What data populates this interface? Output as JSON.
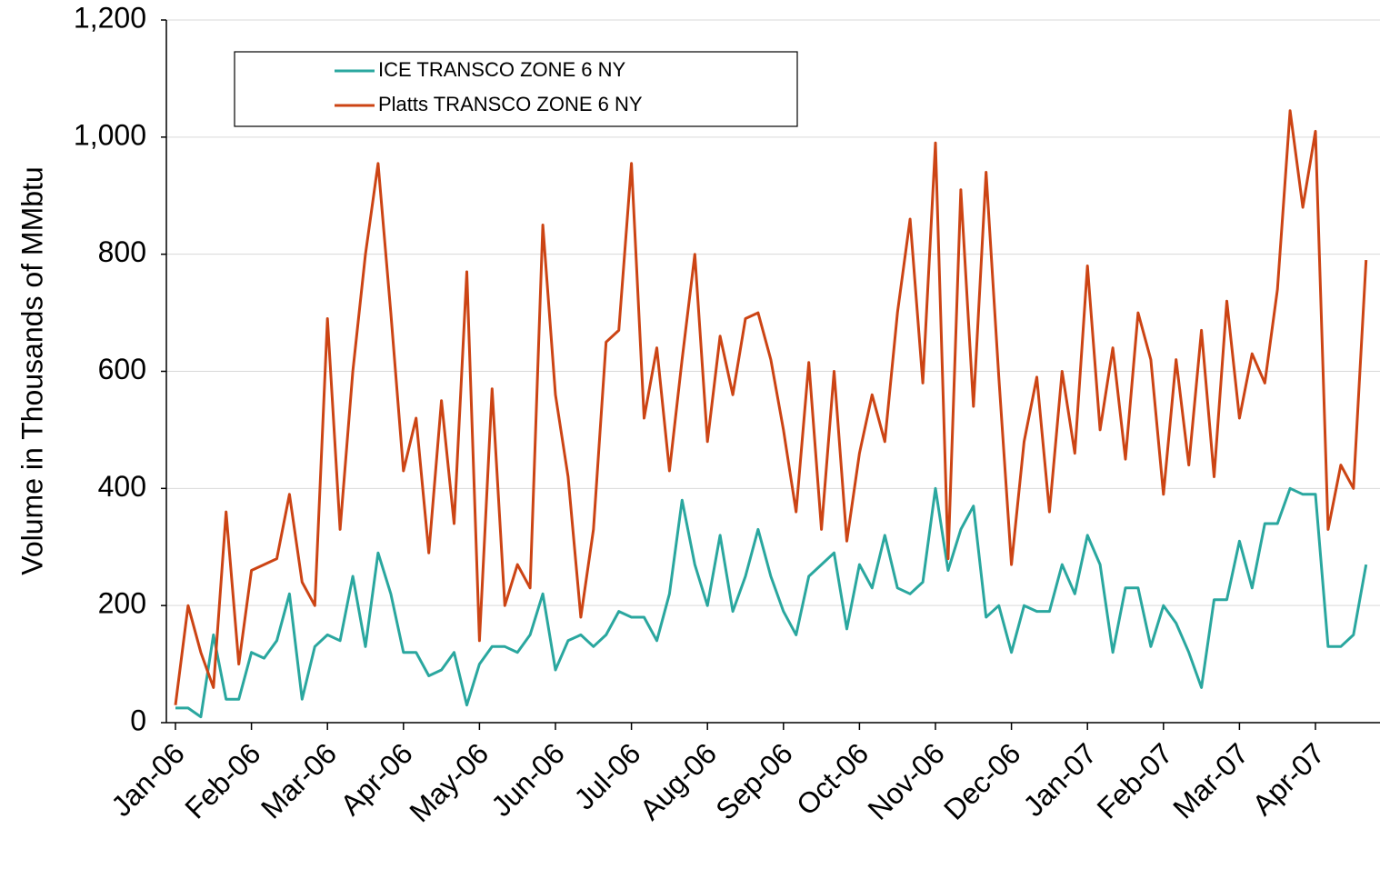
{
  "chart_data": {
    "type": "line",
    "y_label": "Volume in Thousands of MMbtu",
    "categories": [
      "Jan-06",
      null,
      null,
      null,
      null,
      null,
      "Feb-06",
      null,
      null,
      null,
      null,
      null,
      "Mar-06",
      null,
      null,
      null,
      null,
      null,
      "Apr-06",
      null,
      null,
      null,
      null,
      null,
      "May-06",
      null,
      null,
      null,
      null,
      null,
      "Jun-06",
      null,
      null,
      null,
      null,
      null,
      "Jul-06",
      null,
      null,
      null,
      null,
      null,
      "Aug-06",
      null,
      null,
      null,
      null,
      null,
      "Sep-06",
      null,
      null,
      null,
      null,
      null,
      "Oct-06",
      null,
      null,
      null,
      null,
      null,
      "Nov-06",
      null,
      null,
      null,
      null,
      null,
      "Dec-06",
      null,
      null,
      null,
      null,
      null,
      "Jan-07",
      null,
      null,
      null,
      null,
      null,
      "Feb-07",
      null,
      null,
      null,
      null,
      null,
      "Mar-07",
      null,
      null,
      null,
      null,
      null,
      "Apr-07",
      null,
      null,
      null,
      null
    ],
    "series": [
      {
        "name": "ICE TRANSCO ZONE 6 NY",
        "color": "#2aa79f",
        "values": [
          25,
          25,
          10,
          150,
          40,
          40,
          120,
          110,
          140,
          220,
          40,
          130,
          150,
          140,
          250,
          130,
          290,
          220,
          120,
          120,
          80,
          90,
          120,
          30,
          100,
          130,
          130,
          120,
          150,
          220,
          90,
          140,
          150,
          130,
          150,
          190,
          180,
          180,
          140,
          220,
          380,
          270,
          200,
          320,
          190,
          250,
          330,
          250,
          190,
          150,
          250,
          270,
          290,
          160,
          270,
          230,
          320,
          230,
          220,
          240,
          400,
          260,
          330,
          370,
          180,
          200,
          120,
          200,
          190,
          190,
          270,
          220,
          320,
          270,
          120,
          230,
          230,
          130,
          200,
          170,
          120,
          60,
          210,
          210,
          310,
          230,
          340,
          340,
          400,
          390,
          390,
          130,
          130,
          150,
          270
        ]
      },
      {
        "name": "Platts TRANSCO ZONE 6 NY",
        "color": "#cc4414",
        "values": [
          30,
          200,
          120,
          60,
          360,
          100,
          260,
          270,
          280,
          390,
          240,
          200,
          690,
          330,
          600,
          800,
          955,
          700,
          430,
          520,
          290,
          550,
          340,
          770,
          140,
          570,
          200,
          270,
          230,
          850,
          560,
          420,
          180,
          330,
          650,
          670,
          955,
          520,
          640,
          430,
          620,
          800,
          480,
          660,
          560,
          690,
          700,
          620,
          500,
          360,
          615,
          330,
          600,
          310,
          460,
          560,
          480,
          700,
          860,
          580,
          990,
          280,
          910,
          540,
          940,
          590,
          270,
          480,
          590,
          360,
          600,
          460,
          780,
          500,
          640,
          450,
          700,
          620,
          390,
          620,
          440,
          670,
          420,
          720,
          520,
          630,
          580,
          740,
          1045,
          880,
          1010,
          330,
          440,
          400,
          790
        ]
      }
    ],
    "ylim": [
      0,
      1200
    ],
    "yticks": [
      0,
      200,
      400,
      600,
      800,
      {
        "value": 1000,
        "label": "1,000"
      },
      {
        "value": 1200,
        "label": "1,200"
      }
    ],
    "grid": true,
    "legend": "top-left"
  }
}
